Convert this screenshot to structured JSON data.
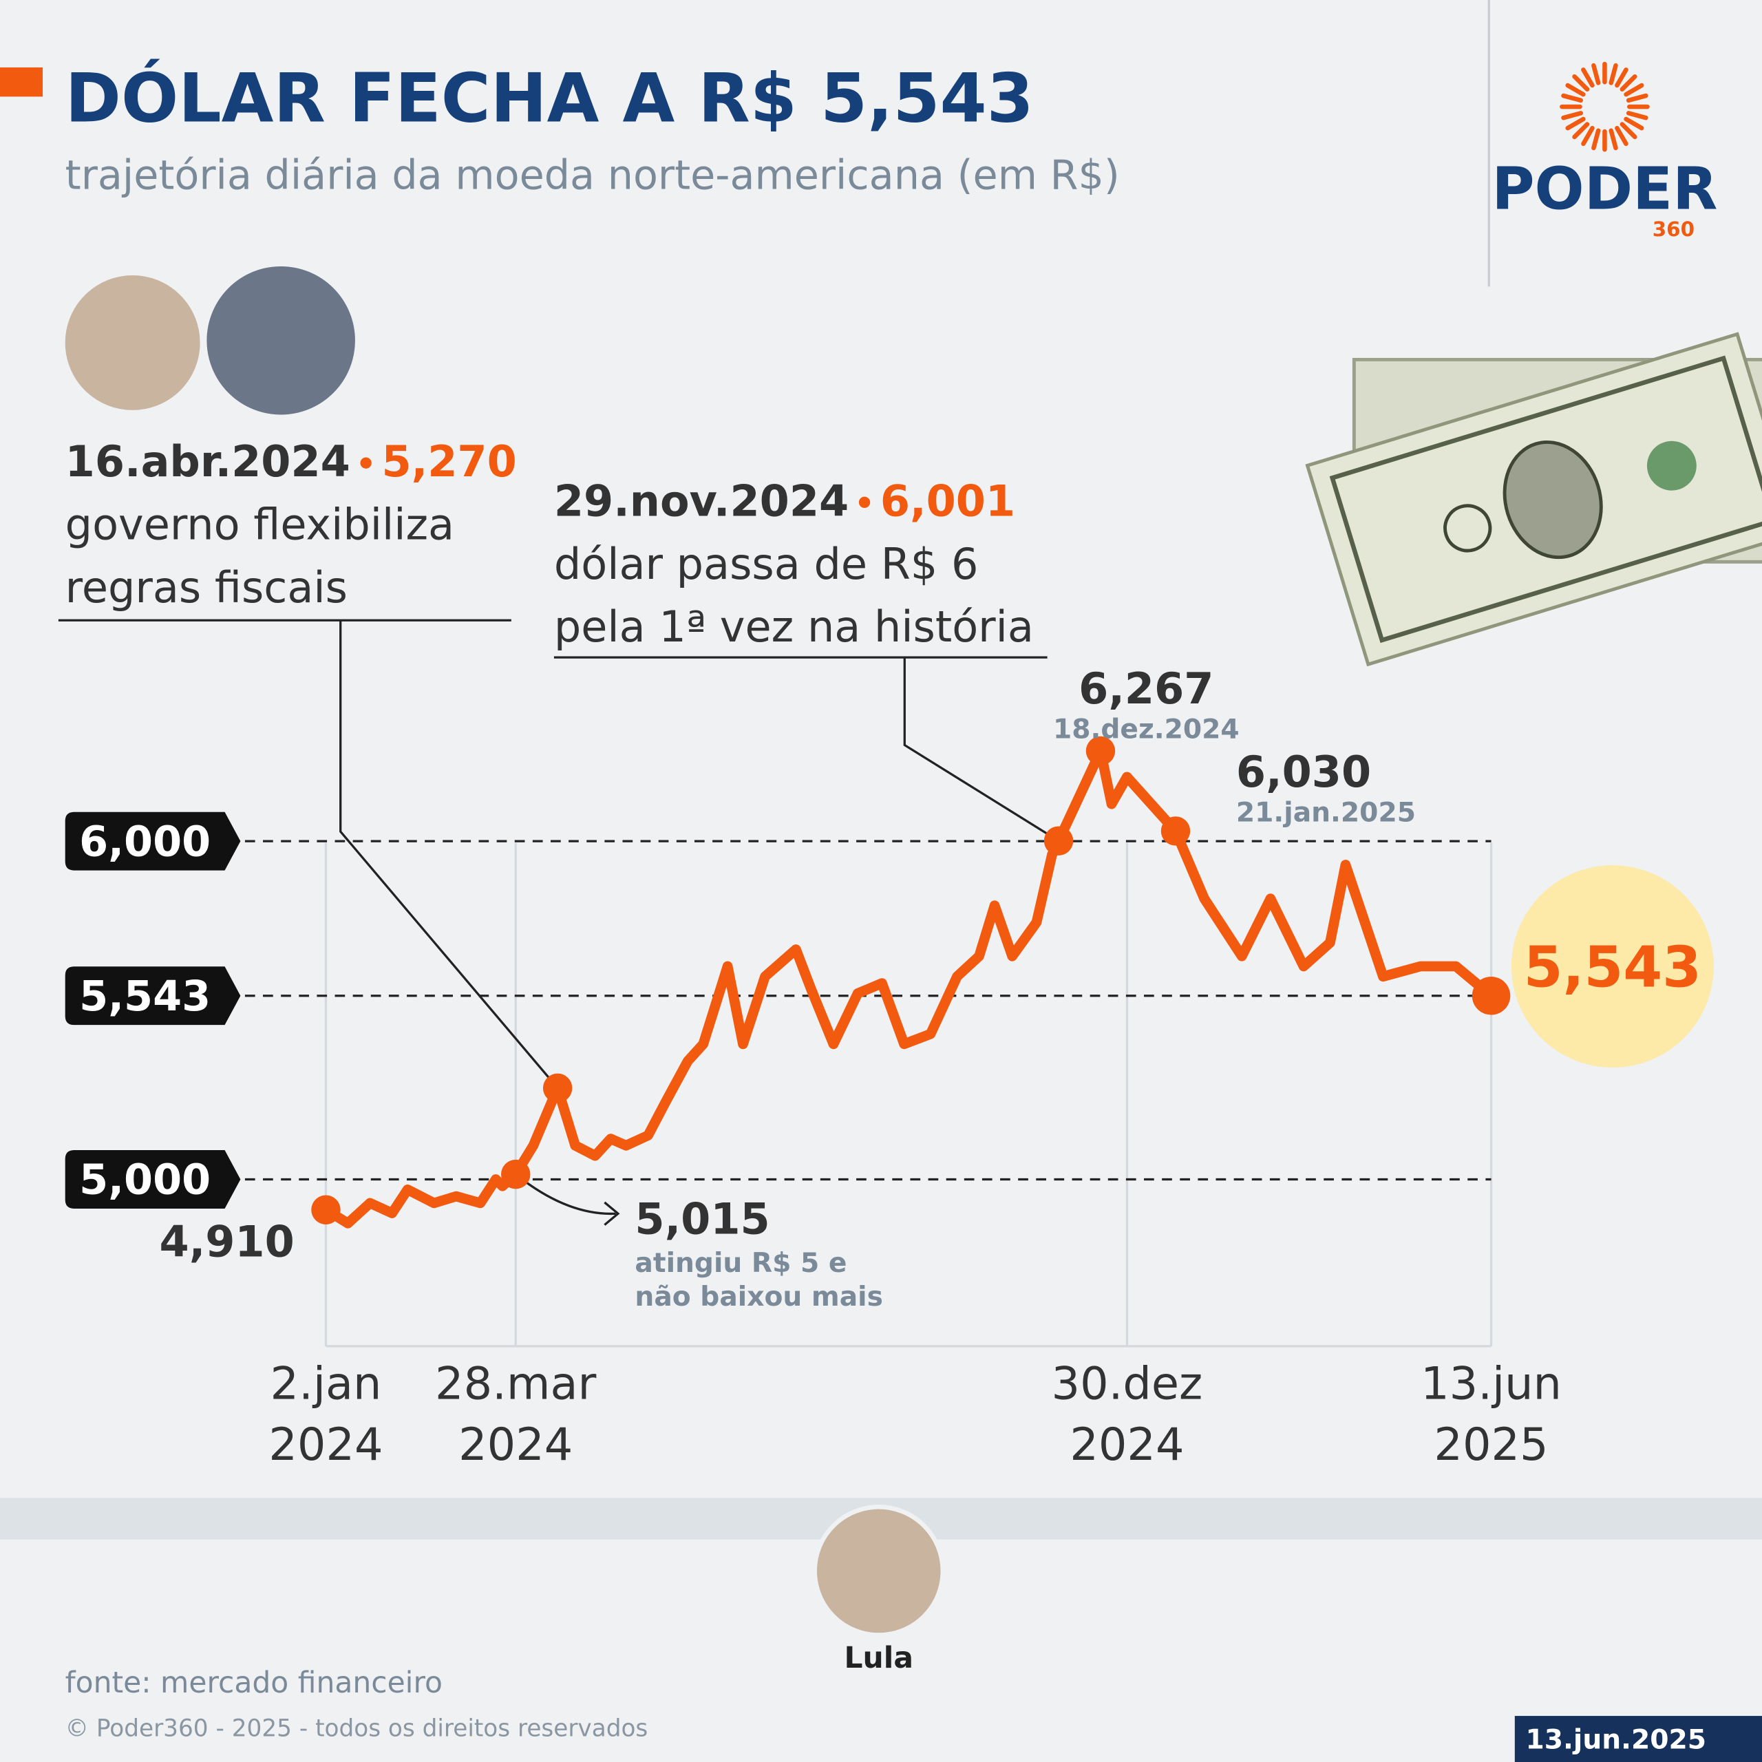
{
  "header": {
    "title": "DÓLAR FECHA A R$ 5,543",
    "subtitle": "trajetória diária da moeda norte-americana (em R$)"
  },
  "logo": {
    "name": "PODER",
    "number": "360"
  },
  "chart_data": {
    "type": "line",
    "color": "#f25a0f",
    "x": [
      "2024-01-02",
      "2024-01-12",
      "2024-01-22",
      "2024-02-01",
      "2024-02-08",
      "2024-02-20",
      "2024-03-01",
      "2024-03-12",
      "2024-03-19",
      "2024-03-22",
      "2024-03-28",
      "2024-04-05",
      "2024-04-16",
      "2024-04-24",
      "2024-05-03",
      "2024-05-10",
      "2024-05-17",
      "2024-05-27",
      "2024-06-04",
      "2024-06-14",
      "2024-06-21",
      "2024-07-02",
      "2024-07-09",
      "2024-07-19",
      "2024-08-02",
      "2024-08-09",
      "2024-08-19",
      "2024-08-30",
      "2024-09-10",
      "2024-09-20",
      "2024-10-02",
      "2024-10-14",
      "2024-10-24",
      "2024-10-31",
      "2024-11-08",
      "2024-11-19",
      "2024-11-26",
      "2024-11-29",
      "2024-12-18",
      "2024-12-23",
      "2024-12-30",
      "2025-01-21",
      "2025-02-03",
      "2025-02-20",
      "2025-03-05",
      "2025-03-20",
      "2025-04-01",
      "2025-04-08",
      "2025-04-25",
      "2025-05-12",
      "2025-05-28",
      "2025-06-13"
    ],
    "values": [
      4.91,
      4.87,
      4.93,
      4.9,
      4.97,
      4.93,
      4.95,
      4.93,
      5.0,
      4.98,
      5.015,
      5.1,
      5.27,
      5.1,
      5.07,
      5.12,
      5.1,
      5.13,
      5.23,
      5.35,
      5.4,
      5.63,
      5.4,
      5.6,
      5.68,
      5.56,
      5.4,
      5.55,
      5.58,
      5.4,
      5.43,
      5.6,
      5.66,
      5.81,
      5.66,
      5.76,
      5.96,
      6.001,
      6.267,
      6.11,
      6.19,
      6.03,
      5.83,
      5.66,
      5.83,
      5.63,
      5.7,
      5.93,
      5.6,
      5.63,
      5.63,
      5.543
    ],
    "value_labels": [
      "4,910",
      null,
      null,
      null,
      null,
      null,
      null,
      null,
      null,
      null,
      "5,015",
      null,
      "5,270",
      null,
      null,
      null,
      null,
      null,
      null,
      null,
      null,
      null,
      null,
      null,
      null,
      null,
      null,
      null,
      null,
      null,
      null,
      null,
      null,
      null,
      null,
      null,
      null,
      "6,001",
      "6,267",
      null,
      null,
      "6,030",
      null,
      null,
      null,
      null,
      null,
      null,
      null,
      null,
      null,
      "5,543"
    ],
    "xlim": [
      "2024-01-02",
      "2025-06-13"
    ],
    "xticks": [
      {
        "value": "2024-01-02",
        "label": "2.jan 2024"
      },
      {
        "value": "2024-03-28",
        "label": "28.mar 2024"
      },
      {
        "value": "2024-12-30",
        "label": "30.dez 2024"
      },
      {
        "value": "2025-06-13",
        "label": "13.jun 2025"
      }
    ],
    "ylim": [
      4.5,
      6.6
    ],
    "yticks": [
      {
        "value": 5,
        "label": "5,000"
      },
      {
        "value": 5.543,
        "label": "5,543"
      },
      {
        "value": 6,
        "label": "6,000"
      }
    ],
    "annotations": [
      {
        "date": "16.abr.2024",
        "lines": [
          "governo flexibiliza",
          "regras fiscais"
        ]
      },
      {
        "date": "29.nov.2024",
        "lines": [
          "dólar passa de R$ 6",
          "pela 1ª vez na história"
        ]
      },
      {
        "date": "18.dez.2024"
      },
      {
        "date": "21.jan.2025"
      },
      {
        "lines": [
          "atingiu R$ 5 e",
          "não baixou mais"
        ]
      }
    ]
  },
  "photo_caption": "Lula",
  "footer": {
    "source": "fonte: mercado financeiro",
    "copyright": "© Poder360 - 2025 - todos os direitos reservados",
    "date": "13.jun.2025"
  }
}
